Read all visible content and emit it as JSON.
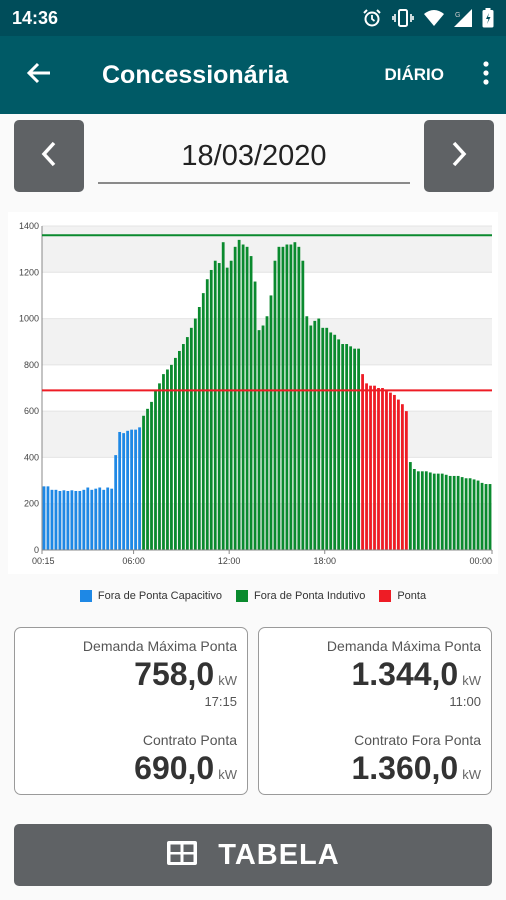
{
  "status": {
    "time": "14:36"
  },
  "app_bar": {
    "title": "Concessionária",
    "period": "DIÁRIO"
  },
  "date": "18/03/2020",
  "colors": {
    "capacitivo": "#1e88e5",
    "indutivo": "#0a8a2e",
    "ponta": "#ee1c25",
    "app_bar": "#005a66"
  },
  "legend": [
    {
      "label": "Fora de Ponta Capacitivo",
      "color": "#1e88e5"
    },
    {
      "label": "Fora de Ponta Indutivo",
      "color": "#0a8a2e"
    },
    {
      "label": "Ponta",
      "color": "#ee1c25"
    }
  ],
  "chart_data": {
    "type": "bar",
    "ylim": [
      0,
      1400
    ],
    "yticks": [
      0,
      200,
      400,
      600,
      800,
      1000,
      1200,
      1400
    ],
    "xticks": [
      "00:15",
      "06:00",
      "12:00",
      "18:00",
      "00:00"
    ],
    "grid": true,
    "reference_lines": [
      {
        "value": 1360,
        "color": "#0a8a2e"
      },
      {
        "value": 690,
        "color": "#ee1c25"
      }
    ],
    "series": [
      {
        "name": "Fora de Ponta Capacitivo",
        "color": "#1e88e5",
        "values": [
          275,
          275,
          260,
          260,
          255,
          258,
          255,
          258,
          255,
          255,
          260,
          270,
          260,
          265,
          270,
          260,
          270,
          265,
          410,
          510,
          505,
          515,
          520,
          520,
          530
        ]
      },
      {
        "name": "Fora de Ponta Indutivo",
        "color": "#0a8a2e",
        "values": [
          580,
          610,
          640,
          690,
          720,
          760,
          780,
          800,
          830,
          860,
          890,
          920,
          960,
          1000,
          1050,
          1110,
          1170,
          1210,
          1250,
          1240,
          1330,
          1220,
          1250,
          1310,
          1340,
          1320,
          1310,
          1270,
          1160,
          950,
          970,
          1010,
          1100,
          1250,
          1310,
          1310,
          1320,
          1320,
          1330,
          1310,
          1250,
          1010,
          970,
          990,
          1000,
          960,
          960,
          940,
          930,
          910,
          890,
          890,
          880,
          870,
          870
        ]
      },
      {
        "name": "Ponta",
        "color": "#ee1c25",
        "values": [
          760,
          720,
          710,
          710,
          700,
          700,
          690,
          680,
          670,
          650,
          630,
          600
        ]
      },
      {
        "name": "Fora de Ponta Indutivo (noite)",
        "color": "#0a8a2e",
        "values": [
          380,
          350,
          340,
          340,
          340,
          335,
          330,
          330,
          330,
          325,
          320,
          320,
          320,
          315,
          310,
          310,
          305,
          300,
          290,
          285,
          285
        ]
      }
    ]
  },
  "cards": {
    "left": {
      "demand_label": "Demanda Máxima Ponta",
      "demand_value": "758,0",
      "demand_unit": "kW",
      "demand_time": "17:15",
      "contract_label": "Contrato Ponta",
      "contract_value": "690,0",
      "contract_unit": "kW"
    },
    "right": {
      "demand_label": "Demanda Máxima Ponta",
      "demand_value": "1.344,0",
      "demand_unit": "kW",
      "demand_time": "11:00",
      "contract_label": "Contrato Fora Ponta",
      "contract_value": "1.360,0",
      "contract_unit": "kW"
    }
  },
  "table_button": {
    "label": "TABELA",
    "icon": "table-icon"
  }
}
